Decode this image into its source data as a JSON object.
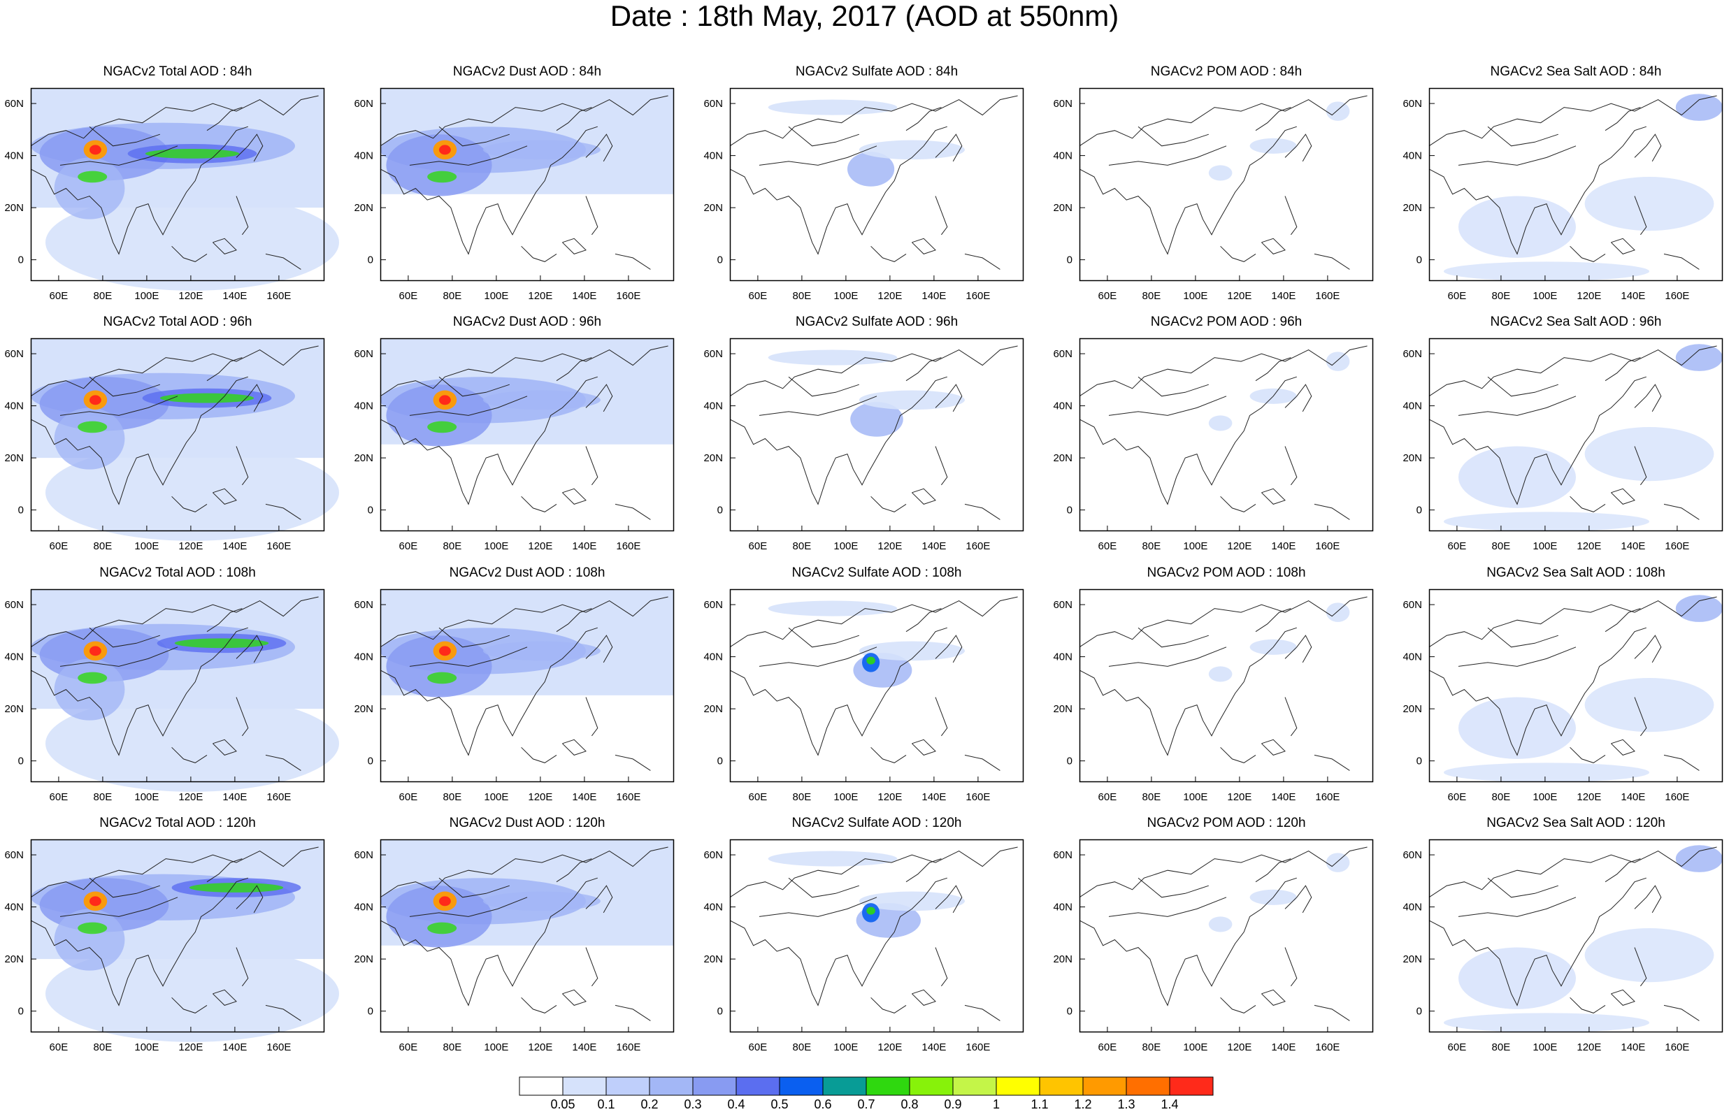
{
  "title": "Date : 18th May, 2017 (AOD at 550nm)",
  "panels": [
    [
      "NGACv2 Total AOD : 84h",
      "NGACv2 Dust AOD : 84h",
      "NGACv2 Sulfate AOD : 84h",
      "NGACv2 POM AOD : 84h",
      "NGACv2 Sea Salt AOD : 84h"
    ],
    [
      "NGACv2 Total AOD : 96h",
      "NGACv2 Dust AOD : 96h",
      "NGACv2 Sulfate AOD : 96h",
      "NGACv2 POM AOD : 96h",
      "NGACv2 Sea Salt AOD : 96h"
    ],
    [
      "NGACv2 Total AOD : 108h",
      "NGACv2 Dust AOD : 108h",
      "NGACv2 Sulfate AOD : 108h",
      "NGACv2 POM AOD : 108h",
      "NGACv2 Sea Salt AOD : 108h"
    ],
    [
      "NGACv2 Total AOD : 120h",
      "NGACv2 Dust AOD : 120h",
      "NGACv2 Sulfate AOD : 120h",
      "NGACv2 POM AOD : 120h",
      "NGACv2 Sea Salt  AOD : 120h"
    ]
  ],
  "x_ticks": [
    "60E",
    "80E",
    "100E",
    "120E",
    "140E",
    "160E"
  ],
  "y_ticks": [
    "60N",
    "40N",
    "20N",
    "0"
  ],
  "colorbar": {
    "colors": [
      "#ffffff",
      "#d6e2fb",
      "#bfcffb",
      "#a3b7f6",
      "#889bf2",
      "#5b6ef0",
      "#0a5ff0",
      "#089c96",
      "#2fd80f",
      "#87f20a",
      "#c4f548",
      "#ffff00",
      "#ffc400",
      "#ff9a00",
      "#ff6f00",
      "#ff2a1a"
    ],
    "labels": [
      "0.05",
      "0.1",
      "0.2",
      "0.3",
      "0.4",
      "0.5",
      "0.6",
      "0.7",
      "0.8",
      "0.9",
      "1",
      "1.1",
      "1.2",
      "1.3",
      "1.4"
    ]
  }
}
